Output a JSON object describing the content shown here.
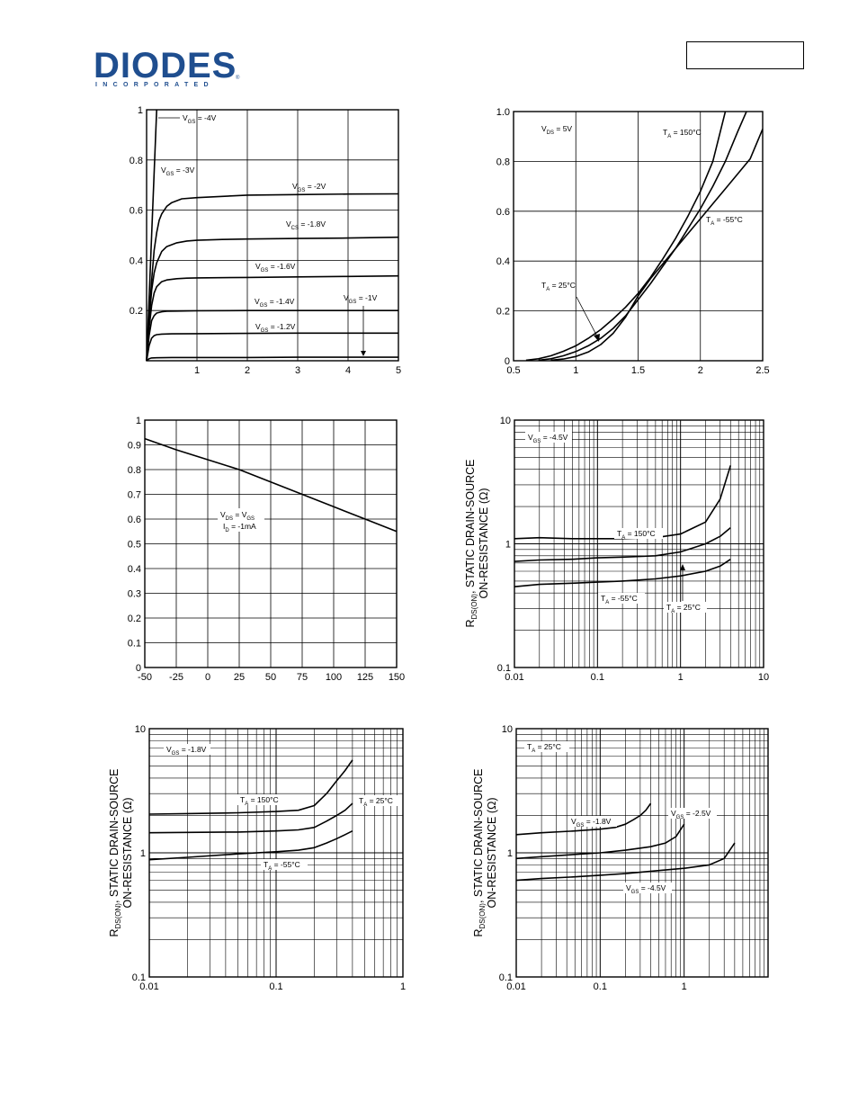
{
  "header": {
    "logo_text": "DIODES",
    "logo_subtext": "INCORPORATED",
    "logo_mark": "®",
    "part_number": ""
  },
  "chart_data": [
    {
      "id": "c1",
      "type": "line",
      "xlim": [
        0,
        5
      ],
      "ylim": [
        0,
        1
      ],
      "xticks": [
        1,
        2,
        3,
        4,
        5
      ],
      "xtick_labels": [
        "1",
        "2",
        "3",
        "4",
        "5"
      ],
      "yticks": [
        0.2,
        0.4,
        0.6,
        0.8,
        1
      ],
      "ytick_labels": [
        "0.2",
        "0.4",
        "0.6",
        "0.8",
        "1"
      ],
      "xlabel": "",
      "ylabel": "",
      "series": [
        {
          "name": "V_GS = -4V",
          "x": [
            0,
            0.05,
            0.1,
            0.15,
            0.2
          ],
          "y": [
            0,
            0.25,
            0.5,
            0.75,
            1.0
          ]
        },
        {
          "name": "V_GS = -3V",
          "x": [
            0,
            0.05,
            0.1,
            0.15,
            0.2,
            0.25,
            0.3,
            0.4,
            0.5,
            0.7,
            1.0,
            2.0,
            3.0,
            4.0,
            5.0
          ],
          "y": [
            0,
            0.17,
            0.32,
            0.44,
            0.51,
            0.56,
            0.585,
            0.615,
            0.63,
            0.645,
            0.65,
            0.66,
            0.662,
            0.664,
            0.665
          ]
        },
        {
          "name": "V_CS = -1.8V",
          "x": [
            0,
            0.05,
            0.1,
            0.15,
            0.2,
            0.3,
            0.4,
            0.6,
            0.8,
            1.0,
            1.5,
            2.0,
            3.0,
            4.0,
            5.0
          ],
          "y": [
            0,
            0.16,
            0.28,
            0.35,
            0.39,
            0.435,
            0.455,
            0.47,
            0.477,
            0.48,
            0.483,
            0.485,
            0.487,
            0.489,
            0.492
          ]
        },
        {
          "name": "V_GS = -1.6V",
          "x": [
            0,
            0.05,
            0.1,
            0.15,
            0.2,
            0.3,
            0.4,
            0.6,
            0.8,
            1.0,
            2.0,
            3.0,
            4.0,
            5.0
          ],
          "y": [
            0,
            0.13,
            0.22,
            0.27,
            0.295,
            0.315,
            0.322,
            0.327,
            0.329,
            0.33,
            0.332,
            0.334,
            0.336,
            0.338
          ]
        },
        {
          "name": "V_GS = -1.4V",
          "x": [
            0,
            0.05,
            0.1,
            0.15,
            0.2,
            0.3,
            0.4,
            0.6,
            1.0,
            2.0,
            3.0,
            4.0,
            5.0
          ],
          "y": [
            0,
            0.1,
            0.16,
            0.18,
            0.19,
            0.195,
            0.197,
            0.198,
            0.199,
            0.2,
            0.2,
            0.2,
            0.2
          ]
        },
        {
          "name": "V_GS = -1.2V",
          "x": [
            0,
            0.05,
            0.1,
            0.15,
            0.2,
            0.3,
            0.5,
            1.0,
            2.0,
            3.0,
            4.0,
            5.0
          ],
          "y": [
            0,
            0.06,
            0.09,
            0.1,
            0.104,
            0.106,
            0.107,
            0.108,
            0.109,
            0.11,
            0.11,
            0.11
          ]
        },
        {
          "name": "V_GS = -1V",
          "x": [
            0,
            0.05,
            0.1,
            0.2,
            0.5,
            1,
            2,
            3,
            4,
            5
          ],
          "y": [
            0,
            0.008,
            0.011,
            0.012,
            0.013,
            0.013,
            0.013,
            0.014,
            0.014,
            0.014
          ]
        }
      ]
    },
    {
      "id": "c2",
      "type": "line",
      "xlim": [
        0.5,
        2.5
      ],
      "ylim": [
        0,
        1
      ],
      "xticks": [
        0.5,
        1,
        1.5,
        2,
        2.5
      ],
      "xtick_labels": [
        "0.5",
        "1",
        "1.5",
        "2",
        "2.5"
      ],
      "yticks": [
        0,
        0.2,
        0.4,
        0.6,
        0.8,
        1.0
      ],
      "ytick_labels": [
        "0",
        "0.2",
        "0.4",
        "0.6",
        "0.8",
        "1.0"
      ],
      "xlabel": "",
      "ylabel": "",
      "series": [
        {
          "name": "T_A = 150°C",
          "x": [
            0.6,
            0.7,
            0.8,
            0.9,
            1.0,
            1.1,
            1.2,
            1.3,
            1.4,
            1.5,
            1.6,
            1.7,
            1.8,
            1.9,
            2.0,
            2.1,
            2.2
          ],
          "y": [
            0.002,
            0.008,
            0.02,
            0.038,
            0.06,
            0.09,
            0.125,
            0.168,
            0.215,
            0.27,
            0.335,
            0.41,
            0.49,
            0.58,
            0.68,
            0.8,
            1.0
          ]
        },
        {
          "name": "T_A = 25°C",
          "x": [
            0.7,
            0.8,
            0.9,
            1.0,
            1.1,
            1.2,
            1.3,
            1.4,
            1.5,
            1.6,
            1.7,
            1.8,
            1.9,
            2.0,
            2.1,
            2.2,
            2.3,
            2.37
          ],
          "y": [
            0.002,
            0.008,
            0.02,
            0.037,
            0.06,
            0.09,
            0.13,
            0.18,
            0.245,
            0.31,
            0.38,
            0.45,
            0.53,
            0.61,
            0.7,
            0.8,
            0.92,
            1.0
          ]
        },
        {
          "name": "T_A = -55°C",
          "x": [
            0.8,
            0.9,
            1.0,
            1.1,
            1.2,
            1.3,
            1.4,
            1.5,
            1.6,
            1.7,
            1.8,
            1.9,
            2.0,
            2.1,
            2.2,
            2.3,
            2.4,
            2.5
          ],
          "y": [
            0.002,
            0.007,
            0.017,
            0.035,
            0.065,
            0.11,
            0.175,
            0.26,
            0.33,
            0.39,
            0.45,
            0.51,
            0.57,
            0.63,
            0.69,
            0.75,
            0.81,
            0.93
          ]
        }
      ]
    },
    {
      "id": "c3",
      "type": "line",
      "xlim": [
        -50,
        150
      ],
      "ylim": [
        0,
        1
      ],
      "xticks": [
        -50,
        -25,
        0,
        25,
        50,
        75,
        100,
        125,
        150
      ],
      "xtick_labels": [
        "-50",
        "-25",
        "0",
        "25",
        "50",
        "75",
        "100",
        "125",
        "150"
      ],
      "yticks": [
        0,
        0.1,
        0.2,
        0.3,
        0.4,
        0.5,
        0.6,
        0.7,
        0.8,
        0.9,
        1
      ],
      "ytick_labels": [
        "0",
        "0.1",
        "0.2",
        "0.3",
        "0.4",
        "0.5",
        "0.6",
        "0.7",
        "0.8",
        "0.9",
        "1"
      ],
      "xlabel": "",
      "ylabel": "",
      "series": [
        {
          "name": "V_DS = V_GS, I_D = -1mA",
          "x": [
            -50,
            -25,
            0,
            25,
            50,
            75,
            100,
            125,
            150
          ],
          "y": [
            0.925,
            0.88,
            0.84,
            0.8,
            0.75,
            0.7,
            0.65,
            0.6,
            0.55
          ]
        }
      ]
    },
    {
      "id": "c4",
      "type": "line",
      "xscale": "log",
      "yscale": "log",
      "xlim": [
        0.01,
        10
      ],
      "ylim": [
        0.1,
        10
      ],
      "xticks": [
        0.01,
        0.1,
        1,
        10
      ],
      "xtick_labels": [
        "0.01",
        "0.1",
        "1",
        "10"
      ],
      "yticks": [
        0.1,
        1,
        10
      ],
      "ytick_labels": [
        "0.1",
        "1",
        "10"
      ],
      "xlabel": "",
      "ylabel": [
        "R",
        "DS(ON)",
        ", STATIC DRAIN-SOURCE",
        "ON-RESISTANCE (Ω)"
      ],
      "series": [
        {
          "name": "T_A = 150°C",
          "x": [
            0.01,
            0.02,
            0.05,
            0.1,
            0.2,
            0.5,
            1,
            2,
            3,
            4
          ],
          "y": [
            1.1,
            1.12,
            1.1,
            1.1,
            1.1,
            1.12,
            1.2,
            1.5,
            2.3,
            4.3
          ]
        },
        {
          "name": "T_A = 25°C",
          "x": [
            0.01,
            0.02,
            0.05,
            0.1,
            0.2,
            0.5,
            1,
            2,
            3,
            4
          ],
          "y": [
            0.72,
            0.74,
            0.75,
            0.77,
            0.78,
            0.8,
            0.86,
            1.0,
            1.15,
            1.35
          ]
        },
        {
          "name": "T_A = -55°C",
          "x": [
            0.01,
            0.02,
            0.05,
            0.1,
            0.2,
            0.5,
            1,
            2,
            3,
            4
          ],
          "y": [
            0.45,
            0.47,
            0.48,
            0.49,
            0.5,
            0.52,
            0.55,
            0.6,
            0.66,
            0.75
          ]
        }
      ]
    },
    {
      "id": "c5",
      "type": "line",
      "xscale": "log",
      "yscale": "log",
      "xlim": [
        0.01,
        1
      ],
      "ylim": [
        0.1,
        10
      ],
      "xticks": [
        0.01,
        0.1,
        1
      ],
      "xtick_labels": [
        "0.01",
        "0.1",
        "1"
      ],
      "yticks": [
        0.1,
        1,
        10
      ],
      "ytick_labels": [
        "0.1",
        "1",
        "10"
      ],
      "xlabel": "",
      "ylabel": [
        "R",
        "DS(ON)",
        ", STATIC DRAIN-SOURCE",
        "ON-RESISTANCE (Ω)"
      ],
      "series": [
        {
          "name": "T_A = 150°C",
          "x": [
            0.01,
            0.02,
            0.05,
            0.1,
            0.15,
            0.2,
            0.25,
            0.3,
            0.35,
            0.4
          ],
          "y": [
            2.05,
            2.07,
            2.1,
            2.15,
            2.2,
            2.4,
            3.0,
            3.8,
            4.6,
            5.6
          ]
        },
        {
          "name": "T_A = 25°C",
          "x": [
            0.01,
            0.02,
            0.05,
            0.1,
            0.15,
            0.2,
            0.25,
            0.3,
            0.35,
            0.4
          ],
          "y": [
            1.45,
            1.46,
            1.47,
            1.5,
            1.53,
            1.6,
            1.8,
            2.0,
            2.2,
            2.5
          ]
        },
        {
          "name": "T_A = -55°C",
          "x": [
            0.01,
            0.02,
            0.05,
            0.1,
            0.15,
            0.2,
            0.25,
            0.3,
            0.35,
            0.4
          ],
          "y": [
            0.88,
            0.92,
            0.98,
            1.02,
            1.05,
            1.1,
            1.2,
            1.3,
            1.4,
            1.5
          ]
        }
      ]
    },
    {
      "id": "c6",
      "type": "line",
      "xscale": "log",
      "yscale": "log",
      "xlim": [
        0.01,
        10
      ],
      "ylim": [
        0.1,
        10
      ],
      "xticks": [
        0.01,
        0.1,
        1
      ],
      "xtick_labels": [
        "0.01",
        "0.1",
        "1"
      ],
      "yticks": [
        0.1,
        1,
        10
      ],
      "ytick_labels": [
        "0.1",
        "1",
        "10"
      ],
      "xlabel": "",
      "ylabel": [
        "R",
        "DS(ON)",
        ", STATIC DRAIN-SOURCE",
        "ON-RESISTANCE (Ω)"
      ],
      "series": [
        {
          "name": "V_GS = -1.8V",
          "x": [
            0.01,
            0.02,
            0.05,
            0.1,
            0.15,
            0.2,
            0.25,
            0.3,
            0.35,
            0.4
          ],
          "y": [
            1.4,
            1.45,
            1.5,
            1.55,
            1.6,
            1.7,
            1.85,
            2.0,
            2.2,
            2.5
          ]
        },
        {
          "name": "V_GS = -2.5V",
          "x": [
            0.01,
            0.02,
            0.05,
            0.1,
            0.2,
            0.4,
            0.6,
            0.8,
            1.0
          ],
          "y": [
            0.9,
            0.93,
            0.97,
            1.0,
            1.05,
            1.12,
            1.2,
            1.35,
            1.7
          ]
        },
        {
          "name": "V_GS = -4.5V",
          "x": [
            0.01,
            0.02,
            0.05,
            0.1,
            0.2,
            0.5,
            1,
            2,
            3,
            4
          ],
          "y": [
            0.6,
            0.62,
            0.64,
            0.66,
            0.68,
            0.72,
            0.75,
            0.8,
            0.9,
            1.2
          ]
        }
      ]
    }
  ]
}
